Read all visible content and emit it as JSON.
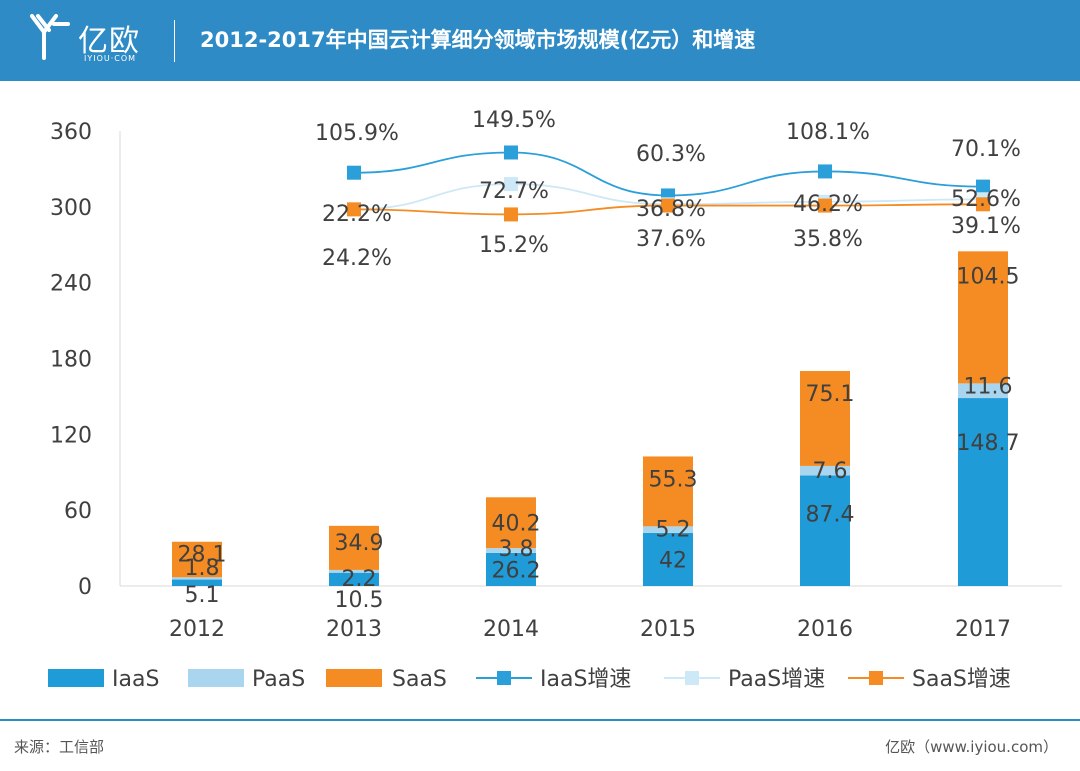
{
  "header": {
    "logo_cn": "亿欧",
    "logo_en": "IYIOU·COM",
    "title": "2012-2017年中国云计算细分领域市场规模(亿元）和增速"
  },
  "footer": {
    "source": "来源：工信部",
    "credit": "亿欧（www.iyiou.com）"
  },
  "colors": {
    "brand": "#2e8bc6",
    "iaas": "#1f9bd7",
    "paas": "#a9d6ee",
    "saas": "#f58c23",
    "iaas_line": "#2a9fd9",
    "paas_line": "#cde8f6",
    "saas_line": "#f58c23"
  },
  "chart_data": {
    "type": "bar",
    "stacked": true,
    "categories": [
      "2012",
      "2013",
      "2014",
      "2015",
      "2016",
      "2017"
    ],
    "series": [
      {
        "name": "IaaS",
        "values": [
          5.1,
          10.5,
          26.2,
          42,
          87.4,
          148.7
        ]
      },
      {
        "name": "PaaS",
        "values": [
          1.8,
          2.2,
          3.8,
          5.2,
          7.6,
          11.6
        ]
      },
      {
        "name": "SaaS",
        "values": [
          28.1,
          34.9,
          40.2,
          55.3,
          75.1,
          104.5
        ]
      }
    ],
    "line_series": [
      {
        "name": "IaaS增速",
        "values": [
          null,
          327,
          343,
          309,
          328,
          316
        ],
        "labels": [
          "",
          "105.9%",
          "149.5%",
          "60.3%",
          "108.1%",
          "70.1%"
        ]
      },
      {
        "name": "PaaS增速",
        "values": [
          null,
          298,
          318,
          302,
          304,
          306
        ],
        "labels": [
          "",
          "22.2%",
          "72.7%",
          "36.8%",
          "46.2%",
          "52.6%"
        ]
      },
      {
        "name": "SaaS增速",
        "values": [
          null,
          298,
          294,
          301,
          301,
          302
        ],
        "labels": [
          "",
          "24.2%",
          "15.2%",
          "37.6%",
          "35.8%",
          "39.1%"
        ]
      }
    ],
    "y_ticks": [
      "0",
      "60",
      "120",
      "180",
      "240",
      "300",
      "360"
    ],
    "ylim": [
      0,
      360
    ],
    "grid": false,
    "legend_position": "bottom",
    "title": "",
    "xlabel": "",
    "ylabel": ""
  }
}
